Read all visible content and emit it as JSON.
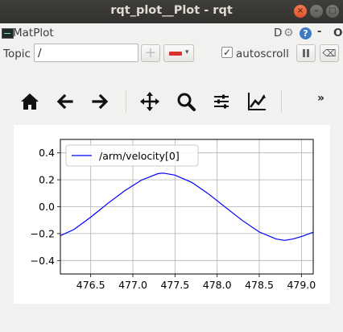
{
  "window": {
    "title": "rqt_plot__Plot - rqt"
  },
  "plugin": {
    "title": "MatPlot",
    "d_label": "D",
    "gear_icon": "gear-icon",
    "help_label": "?",
    "min_label": "-",
    "close_label": "O"
  },
  "topic": {
    "label": "Topic",
    "value": "/",
    "autoscroll_label": "autoscroll",
    "autoscroll_checked": true,
    "check_mark": "✓",
    "add_icon": "+",
    "caret": "▾",
    "clear_icon": "⌫"
  },
  "toolbar": {
    "overflow": "»",
    "icons": [
      "home-icon",
      "back-icon",
      "forward-icon",
      "pan-icon",
      "zoom-icon",
      "configure-icon",
      "edit-axes-icon"
    ]
  },
  "colors": {
    "line": "#0000ff",
    "grid": "#b0b0b0",
    "titlebar": "#3b3a36"
  },
  "chart_data": {
    "type": "line",
    "title": "",
    "xlabel": "",
    "ylabel": "",
    "xlim": [
      476.14,
      479.14
    ],
    "ylim": [
      -0.5,
      0.5
    ],
    "xticks": [
      476.5,
      477.0,
      477.5,
      478.0,
      478.5,
      479.0
    ],
    "yticks": [
      -0.4,
      -0.2,
      0.0,
      0.2,
      0.4
    ],
    "xtick_labels": [
      "476.5",
      "477.0",
      "477.5",
      "478.0",
      "478.5",
      "479.0"
    ],
    "ytick_labels": [
      "−0.4",
      "−0.2",
      "0.0",
      "0.2",
      "0.4"
    ],
    "grid": true,
    "legend_position": "upper-left",
    "series": [
      {
        "name": "/arm/velocity[0]",
        "x": [
          476.14,
          476.3,
          476.5,
          476.7,
          476.9,
          477.1,
          477.3,
          477.36,
          477.5,
          477.7,
          477.9,
          478.1,
          478.3,
          478.5,
          478.7,
          478.8,
          478.9,
          479.0,
          479.14
        ],
        "y": [
          -0.215,
          -0.17,
          -0.078,
          0.023,
          0.117,
          0.197,
          0.246,
          0.25,
          0.235,
          0.18,
          0.094,
          -0.005,
          -0.103,
          -0.188,
          -0.24,
          -0.25,
          -0.24,
          -0.222,
          -0.19
        ]
      }
    ]
  }
}
